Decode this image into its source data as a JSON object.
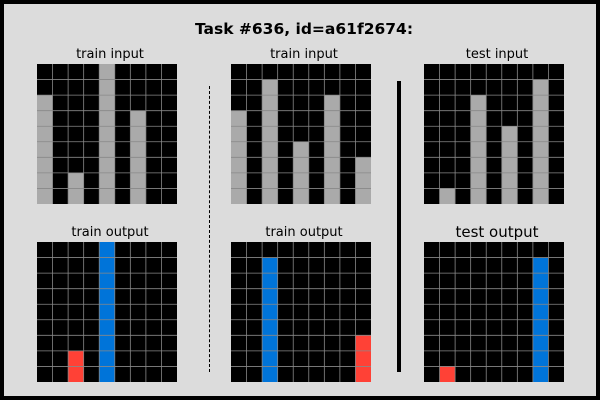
{
  "title": "Task #636, id=a61f2674:",
  "grid_size": [
    9,
    9
  ],
  "colors": {
    "background": "#000000",
    "grey": "#aaaaaa",
    "blue": "#0074d9",
    "red": "#ff4136",
    "gridline": "#888888",
    "frame": "#dcdcdc"
  },
  "panels": [
    {
      "label": "train input",
      "bars": [
        {
          "col": 0,
          "height": 7,
          "color": "grey"
        },
        {
          "col": 2,
          "height": 2,
          "color": "grey"
        },
        {
          "col": 4,
          "height": 9,
          "color": "grey"
        },
        {
          "col": 6,
          "height": 6,
          "color": "grey"
        }
      ]
    },
    {
      "label": "train input",
      "bars": [
        {
          "col": 0,
          "height": 6,
          "color": "grey"
        },
        {
          "col": 2,
          "height": 8,
          "color": "grey"
        },
        {
          "col": 4,
          "height": 4,
          "color": "grey"
        },
        {
          "col": 6,
          "height": 7,
          "color": "grey"
        },
        {
          "col": 8,
          "height": 3,
          "color": "grey"
        }
      ]
    },
    {
      "label": "test input",
      "bars": [
        {
          "col": 1,
          "height": 1,
          "color": "grey"
        },
        {
          "col": 3,
          "height": 7,
          "color": "grey"
        },
        {
          "col": 5,
          "height": 5,
          "color": "grey"
        },
        {
          "col": 7,
          "height": 8,
          "color": "grey"
        }
      ]
    },
    {
      "label": "train output",
      "bars": [
        {
          "col": 2,
          "height": 2,
          "color": "red"
        },
        {
          "col": 4,
          "height": 9,
          "color": "blue"
        }
      ]
    },
    {
      "label": "train output",
      "bars": [
        {
          "col": 2,
          "height": 8,
          "color": "blue"
        },
        {
          "col": 8,
          "height": 3,
          "color": "red"
        }
      ]
    },
    {
      "label": "test output",
      "bars": [
        {
          "col": 1,
          "height": 1,
          "color": "red"
        },
        {
          "col": 7,
          "height": 8,
          "color": "blue"
        }
      ]
    }
  ]
}
